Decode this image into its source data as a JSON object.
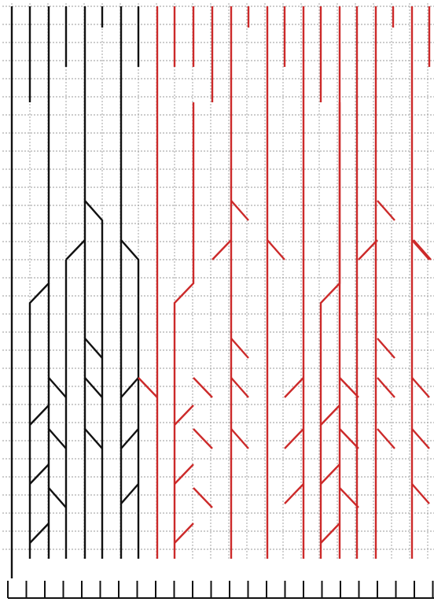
{
  "diagram": {
    "type": "stitch-chart",
    "colors": {
      "background": "#ffffff",
      "grid": "#9a9a9a",
      "motif_1": "#111111",
      "motif_2": "#cc2a2a",
      "comb": "#111111"
    },
    "grid": {
      "columns": 23,
      "rows": 30,
      "line_style": "dashed"
    },
    "motifs": [
      {
        "name": "motif-1",
        "color": "#111111",
        "pattern": "left-panel"
      },
      {
        "name": "motif-2",
        "color": "#cc2a2a",
        "pattern": "repeat-panel"
      }
    ],
    "comb": {
      "teeth": 23
    }
  }
}
